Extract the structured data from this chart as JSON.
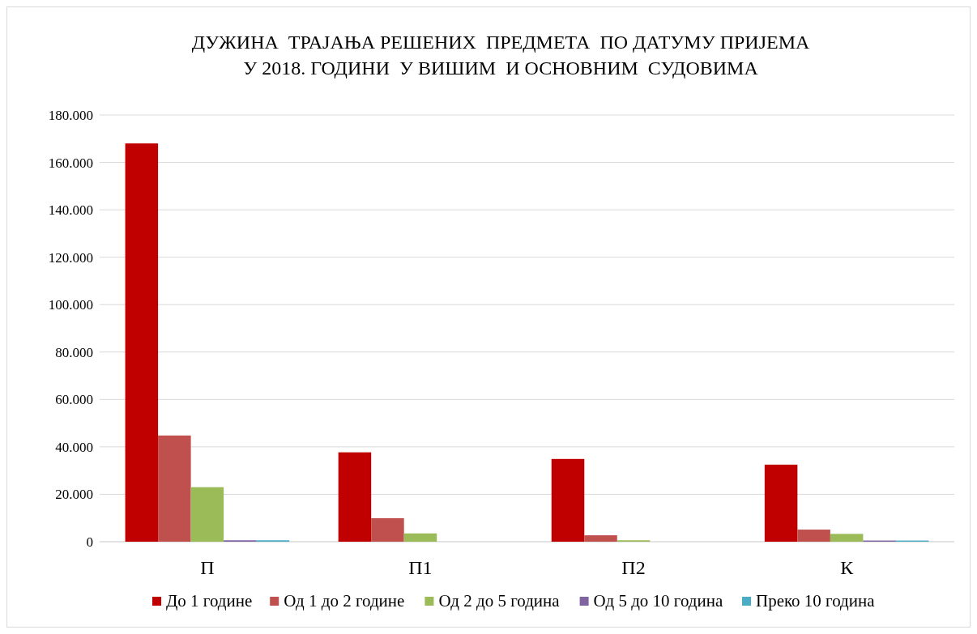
{
  "chart_data": {
    "type": "bar",
    "title": "ДУЖИНА  ТРАЈАЊА РЕШЕНИХ  ПРЕДМЕТА  ПО ДАТУМУ ПРИЈЕМА\nУ 2018. ГОДИНИ  У ВИШИМ  И ОСНОВНИМ  СУДОВИМА",
    "categories": [
      "П",
      "П1",
      "П2",
      "К"
    ],
    "series": [
      {
        "name": "До 1 године",
        "color": "#c00000",
        "values": [
          168000,
          37700,
          34900,
          32500
        ]
      },
      {
        "name": "Од 1 до 2 године",
        "color": "#c0504d",
        "values": [
          44800,
          9900,
          2700,
          5100
        ]
      },
      {
        "name": "Од 2 до 5 година",
        "color": "#9bbb59",
        "values": [
          23000,
          3500,
          600,
          3300
        ]
      },
      {
        "name": "Од 5 до 10 година",
        "color": "#8064a2",
        "values": [
          600,
          0,
          0,
          500
        ]
      },
      {
        "name": "Преко 10 година",
        "color": "#4bacc6",
        "values": [
          600,
          0,
          0,
          500
        ]
      }
    ],
    "ylim": [
      0,
      180000
    ],
    "yticks": [
      {
        "value": 0,
        "label": "0"
      },
      {
        "value": 20000,
        "label": "20.000"
      },
      {
        "value": 40000,
        "label": "40.000"
      },
      {
        "value": 60000,
        "label": "60.000"
      },
      {
        "value": 80000,
        "label": "80.000"
      },
      {
        "value": 100000,
        "label": "100.000"
      },
      {
        "value": 120000,
        "label": "120.000"
      },
      {
        "value": 140000,
        "label": "140.000"
      },
      {
        "value": 160000,
        "label": "160.000"
      },
      {
        "value": 180000,
        "label": "180.000"
      }
    ],
    "grid": "y",
    "legend": "bottom"
  }
}
